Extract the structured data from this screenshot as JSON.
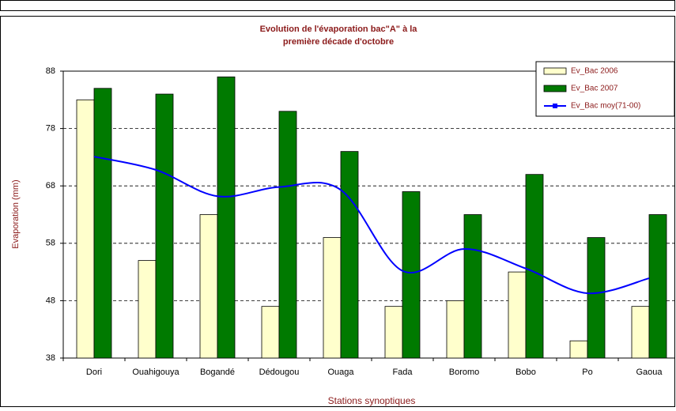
{
  "chart_data": {
    "type": "bar",
    "title": [
      "Evolution de l'évaporation bac\"A\" à la",
      "première décade d'octobre"
    ],
    "x_label": "Stations synoptiques",
    "y_label": "Evaporation (mm)",
    "categories": [
      "Dori",
      "Ouahigouya",
      "Bogandé",
      "Dédougou",
      "Ouaga",
      "Fada",
      "Boromo",
      "Bobo",
      "Po",
      "Gaoua"
    ],
    "series": [
      {
        "name": "Ev_Bac 2006",
        "type": "bar",
        "color": "#ffffcc",
        "values": [
          83,
          55,
          63,
          47,
          59,
          47,
          48,
          53,
          41,
          47
        ]
      },
      {
        "name": "Ev_Bac 2007",
        "type": "bar",
        "color": "#007a00",
        "values": [
          85,
          84,
          87,
          81,
          74,
          67,
          63,
          70,
          59,
          63
        ]
      },
      {
        "name": "Ev_Bac moy(71-00)",
        "type": "line",
        "color": "#0000ff",
        "values": [
          73.1,
          70.8,
          66.2,
          67.8,
          67.3,
          53.2,
          57.0,
          53.6,
          49.3,
          51.9
        ]
      }
    ],
    "ylim": [
      38,
      88
    ],
    "yticks": [
      38,
      48,
      58,
      68,
      78,
      88
    ],
    "grid": true,
    "legend": "top-right"
  }
}
